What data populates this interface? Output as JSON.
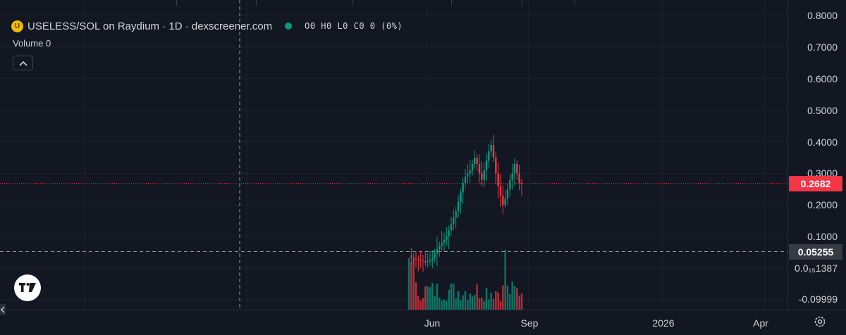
{
  "legend": {
    "coin_glyph": "U",
    "title": "USELESS/SOL on Raydium · 1D · dexscreener.com",
    "ohlc": "O0 H0 L0 C0 0 (0%)",
    "status_color": "#089981"
  },
  "volume": {
    "label": "Volume 0"
  },
  "icons": {
    "collapse": "chevron-up-icon",
    "logo": "tradingview-logo-icon",
    "settings": "gear-icon",
    "scroll_left": "chevron-left-icon"
  },
  "price_axis": {
    "labels": [
      "0.8000",
      "0.7000",
      "0.6000",
      "0.5000",
      "0.4000",
      "0.3000",
      "0.2000",
      "0.1000",
      "0.0₁₅1387",
      "-0.09999"
    ],
    "last_price": "0.2682",
    "crosshair_price": "0.05255"
  },
  "time_axis": {
    "labels": [
      "Jun",
      "Sep",
      "2026",
      "Apr"
    ]
  },
  "colors": {
    "up": "#089981",
    "down": "#f23645",
    "background": "#131722",
    "grid": "#1e222d"
  },
  "chart_data": {
    "type": "candlestick",
    "pair": "USELESS/SOL",
    "interval": "1D",
    "y_range": [
      -0.1,
      0.82
    ],
    "last_price": 0.2682,
    "crosshair_price": 0.05255,
    "price_path": [
      0.04,
      0.035,
      0.03,
      0.028,
      0.026,
      0.024,
      0.022,
      0.02,
      0.022,
      0.025,
      0.03,
      0.045,
      0.06,
      0.07,
      0.08,
      0.09,
      0.1,
      0.12,
      0.14,
      0.16,
      0.18,
      0.21,
      0.24,
      0.27,
      0.29,
      0.3,
      0.31,
      0.33,
      0.35,
      0.33,
      0.3,
      0.28,
      0.31,
      0.34,
      0.37,
      0.39,
      0.35,
      0.3,
      0.26,
      0.23,
      0.2,
      0.22,
      0.25,
      0.28,
      0.3,
      0.33,
      0.3,
      0.27,
      0.2682
    ]
  }
}
